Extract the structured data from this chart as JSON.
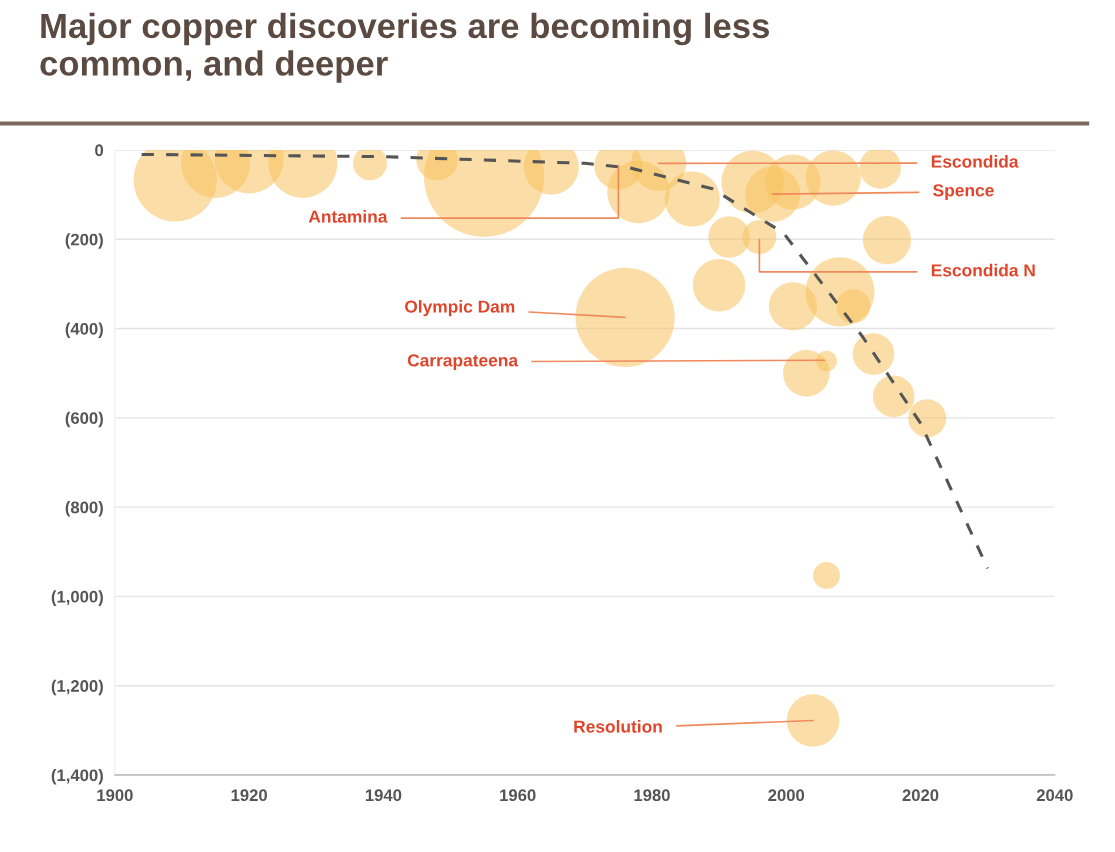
{
  "chart_data": {
    "type": "bubble",
    "title": "Major copper discoveries are becoming less\ncommon, and deeper",
    "xlim": [
      1900,
      2040
    ],
    "xticks": [
      1900,
      1920,
      1940,
      1960,
      1980,
      2000,
      2020,
      2040
    ],
    "ylim": [
      -1400,
      0
    ],
    "yticks": [
      {
        "value": 0,
        "label": "0"
      },
      {
        "value": -200,
        "label": "(200)"
      },
      {
        "value": -400,
        "label": "(400)"
      },
      {
        "value": -600,
        "label": "(600)"
      },
      {
        "value": -800,
        "label": "(800)"
      },
      {
        "value": -1000,
        "label": "(1,000)"
      },
      {
        "value": -1200,
        "label": "(1,200)"
      },
      {
        "value": -1400,
        "label": "(1,400)"
      }
    ],
    "grid": "y",
    "legend": false,
    "series": [
      {
        "color": "#f7c35f",
        "x": [
          1909,
          1915,
          1920,
          1928,
          1938,
          1948,
          1955,
          1965,
          1975,
          1978,
          1981,
          1986,
          1995,
          1998,
          2001,
          2007,
          2014,
          1976,
          1991.5,
          1996,
          2015,
          1990,
          2008,
          2001,
          2010,
          2013,
          2003,
          2006,
          2016,
          2021,
          2006,
          2004
        ],
        "values": [
          -67,
          -30,
          -20,
          -30,
          -30,
          -22,
          -60,
          -38,
          -35,
          -94,
          -30,
          -110,
          -72,
          -99,
          -72,
          -63,
          -40,
          -375,
          -195,
          -195,
          -202,
          -303,
          -318,
          -350,
          -350,
          -457,
          -500,
          -473,
          -552,
          -601,
          -953,
          -1278
        ],
        "sizes": [
          0.48,
          0.33,
          0.33,
          0.33,
          0.08,
          0.12,
          1,
          0.21,
          0.16,
          0.27,
          0.21,
          0.21,
          0.27,
          0.21,
          0.21,
          0.21,
          0.12,
          0.68,
          0.12,
          0.08,
          0.16,
          0.19,
          0.33,
          0.16,
          0.08,
          0.12,
          0.15,
          0.03,
          0.12,
          0.1,
          0.05,
          0.19
        ]
      },
      {
        "type": "line",
        "color": "#555555",
        "line_style": "dashed",
        "marker": "none",
        "x": [
          1904,
          1940,
          1970,
          1976.6,
          1989,
          1999.6,
          2011.4,
          2020,
          2030
        ],
        "values": [
          -10,
          -15,
          -30,
          -40,
          -87,
          -186,
          -419,
          -612,
          -937
        ]
      }
    ],
    "annotations": [
      {
        "text": "Escondida",
        "x": 1981,
        "y": -30
      },
      {
        "text": "Spence",
        "x": 1998,
        "y": -99
      },
      {
        "text": "Antamina",
        "x": 1975,
        "y": -35
      },
      {
        "text": "Escondida N",
        "x": 1996,
        "y": -200
      },
      {
        "text": "Olympic Dam",
        "x": 1976,
        "y": -375
      },
      {
        "text": "Carrapateena",
        "x": 2005.7,
        "y": -471
      },
      {
        "text": "Resolution",
        "x": 2004,
        "y": -1278
      }
    ]
  }
}
